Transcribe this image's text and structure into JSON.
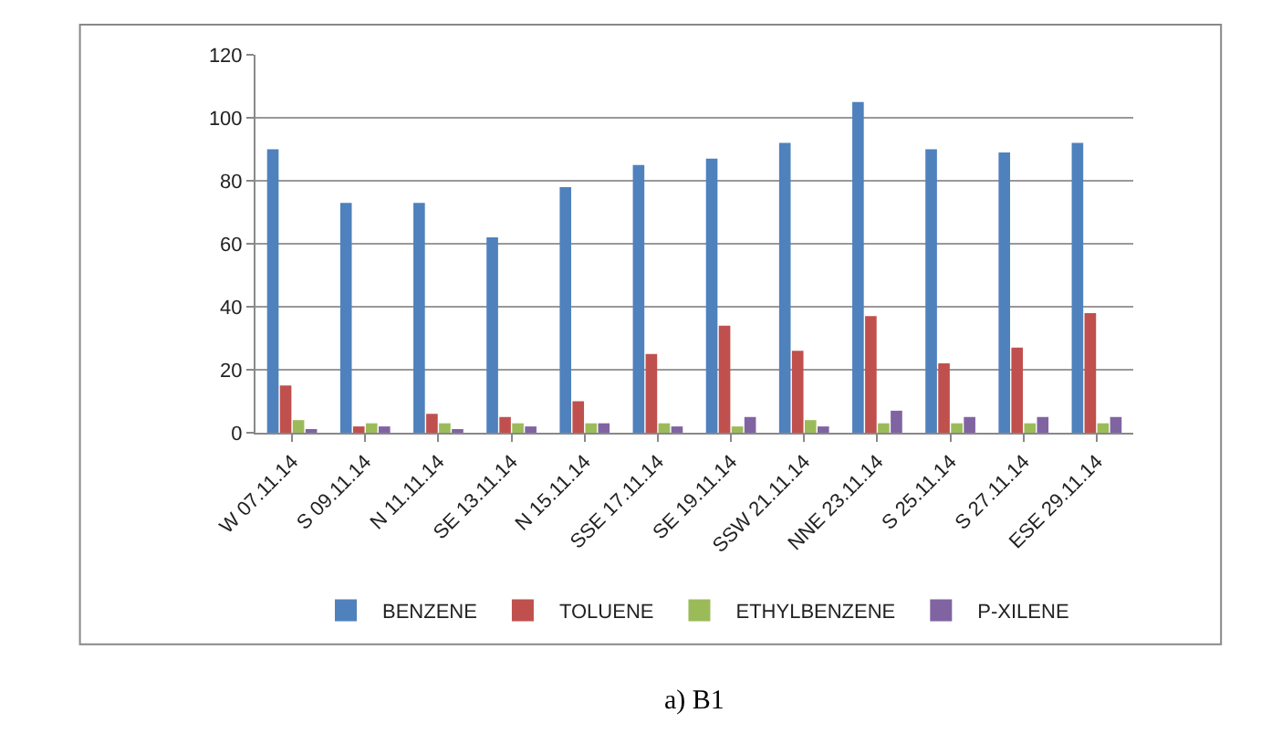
{
  "chart_data": {
    "type": "bar",
    "categories": [
      "W 07.11.14",
      "S 09.11.14",
      "N 11.11.14",
      "SE 13.11.14",
      "N 15.11.14",
      "SSE 17.11.14",
      "SE 19.11.14",
      "SSW 21.11.14",
      "NNE 23.11.14",
      "S 25.11.14",
      "S 27.11.14",
      "ESE 29.11.14"
    ],
    "series": [
      {
        "name": "BENZENE",
        "color": "#4f81bd",
        "values": [
          90,
          73,
          73,
          62,
          78,
          85,
          87,
          92,
          105,
          90,
          89,
          92
        ]
      },
      {
        "name": "TOLUENE",
        "color": "#c0504d",
        "values": [
          15,
          2,
          6,
          5,
          10,
          25,
          34,
          26,
          37,
          22,
          27,
          38
        ]
      },
      {
        "name": "ETHYLBENZENE",
        "color": "#9bbb59",
        "values": [
          4,
          3,
          3,
          3,
          3,
          3,
          2,
          4,
          3,
          3,
          3,
          3
        ]
      },
      {
        "name": "P-XILENE",
        "color": "#8064a2",
        "values": [
          1,
          2,
          1,
          2,
          3,
          2,
          5,
          2,
          7,
          5,
          5,
          5
        ]
      }
    ],
    "ylim": [
      0,
      120
    ],
    "yticks": [
      0,
      20,
      40,
      60,
      80,
      100,
      120
    ],
    "grid": "y",
    "legend": "bottom",
    "annotations": [
      "a) B1"
    ]
  }
}
